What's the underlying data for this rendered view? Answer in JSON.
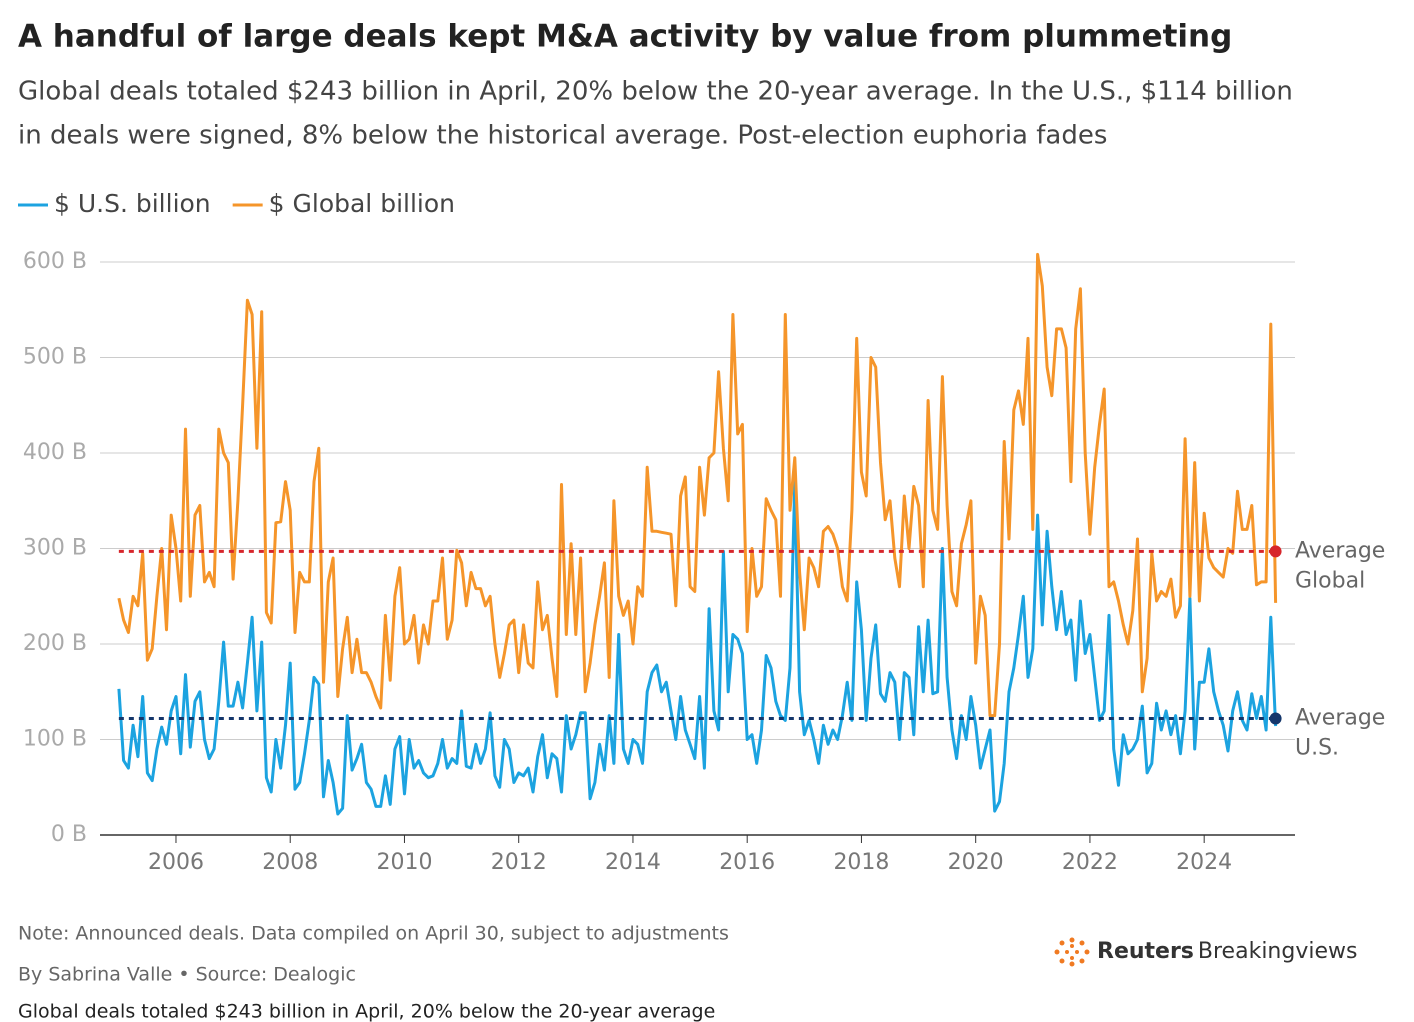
{
  "chart_data": {
    "type": "line",
    "title": "A handful of large deals kept M&A activity by value from plummeting",
    "subtitle_lines": [
      "Global deals totaled $243 billion in April, 20% below the 20-year average. In the U.S., $114 billion",
      "in deals were signed, 8% below the historical average. Post-election euphoria fades"
    ],
    "x": [
      "2005-01",
      "2005-02",
      "2005-03",
      "2005-04",
      "2005-05",
      "2005-06",
      "2005-07",
      "2005-08",
      "2005-09",
      "2005-10",
      "2005-11",
      "2005-12",
      "2006-01",
      "2006-02",
      "2006-03",
      "2006-04",
      "2006-05",
      "2006-06",
      "2006-07",
      "2006-08",
      "2006-09",
      "2006-10",
      "2006-11",
      "2006-12",
      "2007-01",
      "2007-02",
      "2007-03",
      "2007-04",
      "2007-05",
      "2007-06",
      "2007-07",
      "2007-08",
      "2007-09",
      "2007-10",
      "2007-11",
      "2007-12",
      "2008-01",
      "2008-02",
      "2008-03",
      "2008-04",
      "2008-05",
      "2008-06",
      "2008-07",
      "2008-08",
      "2008-09",
      "2008-10",
      "2008-11",
      "2008-12",
      "2009-01",
      "2009-02",
      "2009-03",
      "2009-04",
      "2009-05",
      "2009-06",
      "2009-07",
      "2009-08",
      "2009-09",
      "2009-10",
      "2009-11",
      "2009-12",
      "2010-01",
      "2010-02",
      "2010-03",
      "2010-04",
      "2010-05",
      "2010-06",
      "2010-07",
      "2010-08",
      "2010-09",
      "2010-10",
      "2010-11",
      "2010-12",
      "2011-01",
      "2011-02",
      "2011-03",
      "2011-04",
      "2011-05",
      "2011-06",
      "2011-07",
      "2011-08",
      "2011-09",
      "2011-10",
      "2011-11",
      "2011-12",
      "2012-01",
      "2012-02",
      "2012-03",
      "2012-04",
      "2012-05",
      "2012-06",
      "2012-07",
      "2012-08",
      "2012-09",
      "2012-10",
      "2012-11",
      "2012-12",
      "2013-01",
      "2013-02",
      "2013-03",
      "2013-04",
      "2013-05",
      "2013-06",
      "2013-07",
      "2013-08",
      "2013-09",
      "2013-10",
      "2013-11",
      "2013-12",
      "2014-01",
      "2014-02",
      "2014-03",
      "2014-04",
      "2014-05",
      "2014-06",
      "2014-07",
      "2014-08",
      "2014-09",
      "2014-10",
      "2014-11",
      "2014-12",
      "2015-01",
      "2015-02",
      "2015-03",
      "2015-04",
      "2015-05",
      "2015-06",
      "2015-07",
      "2015-08",
      "2015-09",
      "2015-10",
      "2015-11",
      "2015-12",
      "2016-01",
      "2016-02",
      "2016-03",
      "2016-04",
      "2016-05",
      "2016-06",
      "2016-07",
      "2016-08",
      "2016-09",
      "2016-10",
      "2016-11",
      "2016-12",
      "2017-01",
      "2017-02",
      "2017-03",
      "2017-04",
      "2017-05",
      "2017-06",
      "2017-07",
      "2017-08",
      "2017-09",
      "2017-10",
      "2017-11",
      "2017-12",
      "2018-01",
      "2018-02",
      "2018-03",
      "2018-04",
      "2018-05",
      "2018-06",
      "2018-07",
      "2018-08",
      "2018-09",
      "2018-10",
      "2018-11",
      "2018-12",
      "2019-01",
      "2019-02",
      "2019-03",
      "2019-04",
      "2019-05",
      "2019-06",
      "2019-07",
      "2019-08",
      "2019-09",
      "2019-10",
      "2019-11",
      "2019-12",
      "2020-01",
      "2020-02",
      "2020-03",
      "2020-04",
      "2020-05",
      "2020-06",
      "2020-07",
      "2020-08",
      "2020-09",
      "2020-10",
      "2020-11",
      "2020-12",
      "2021-01",
      "2021-02",
      "2021-03",
      "2021-04",
      "2021-05",
      "2021-06",
      "2021-07",
      "2021-08",
      "2021-09",
      "2021-10",
      "2021-11",
      "2021-12",
      "2022-01",
      "2022-02",
      "2022-03",
      "2022-04",
      "2022-05",
      "2022-06",
      "2022-07",
      "2022-08",
      "2022-09",
      "2022-10",
      "2022-11",
      "2022-12",
      "2023-01",
      "2023-02",
      "2023-03",
      "2023-04",
      "2023-05",
      "2023-06",
      "2023-07",
      "2023-08",
      "2023-09",
      "2023-10",
      "2023-11",
      "2023-12",
      "2024-01",
      "2024-02",
      "2024-03",
      "2024-04",
      "2024-05",
      "2024-06",
      "2024-07",
      "2024-08",
      "2024-09",
      "2024-10",
      "2024-11",
      "2024-12",
      "2025-01",
      "2025-02",
      "2025-03",
      "2025-04"
    ],
    "series": [
      {
        "name": "$ U.S. billion",
        "color": "#1ca3e0",
        "values": [
          153,
          78,
          70,
          115,
          82,
          145,
          65,
          57,
          90,
          113,
          95,
          130,
          145,
          85,
          168,
          92,
          140,
          150,
          100,
          80,
          90,
          140,
          202,
          135,
          135,
          160,
          133,
          180,
          228,
          130,
          202,
          60,
          45,
          100,
          70,
          115,
          180,
          48,
          55,
          85,
          120,
          165,
          158,
          40,
          78,
          55,
          22,
          28,
          125,
          68,
          80,
          95,
          55,
          48,
          30,
          30,
          62,
          32,
          90,
          103,
          43,
          100,
          70,
          78,
          65,
          60,
          62,
          75,
          100,
          70,
          80,
          75,
          130,
          72,
          70,
          95,
          75,
          90,
          128,
          62,
          50,
          100,
          90,
          55,
          65,
          62,
          70,
          45,
          82,
          105,
          60,
          85,
          80,
          45,
          125,
          90,
          105,
          128,
          128,
          38,
          55,
          95,
          68,
          125,
          75,
          210,
          90,
          75,
          100,
          95,
          75,
          150,
          170,
          178,
          150,
          160,
          130,
          100,
          145,
          110,
          95,
          80,
          145,
          70,
          237,
          130,
          110,
          297,
          150,
          210,
          205,
          190,
          100,
          105,
          75,
          110,
          188,
          175,
          140,
          125,
          120,
          175,
          370,
          150,
          105,
          120,
          100,
          75,
          115,
          95,
          110,
          100,
          125,
          160,
          120,
          265,
          215,
          120,
          185,
          220,
          148,
          140,
          170,
          160,
          100,
          170,
          165,
          105,
          218,
          150,
          225,
          148,
          150,
          300,
          165,
          110,
          80,
          125,
          100,
          145,
          115,
          70,
          90,
          110,
          25,
          35,
          75,
          150,
          175,
          210,
          250,
          165,
          195,
          335,
          220,
          318,
          260,
          215,
          255,
          210,
          225,
          162,
          245,
          190,
          210,
          165,
          120,
          130,
          230,
          90,
          52,
          105,
          85,
          90,
          100,
          135,
          65,
          75,
          138,
          110,
          130,
          105,
          125,
          85,
          130,
          248,
          90,
          160,
          160,
          195,
          150,
          130,
          115,
          88,
          130,
          150,
          120,
          110,
          148,
          122,
          145,
          110,
          228,
          114
        ]
      },
      {
        "name": "$ Global billion",
        "color": "#f5952a",
        "values": [
          248,
          225,
          212,
          250,
          240,
          295,
          183,
          195,
          250,
          300,
          215,
          335,
          300,
          245,
          425,
          250,
          335,
          345,
          265,
          275,
          260,
          425,
          400,
          390,
          268,
          350,
          450,
          560,
          545,
          405,
          548,
          233,
          222,
          327,
          328,
          370,
          340,
          212,
          275,
          265,
          265,
          370,
          405,
          160,
          265,
          290,
          145,
          195,
          228,
          170,
          205,
          170,
          170,
          160,
          145,
          133,
          230,
          162,
          250,
          280,
          200,
          205,
          230,
          180,
          220,
          200,
          245,
          245,
          290,
          205,
          225,
          298,
          285,
          240,
          275,
          258,
          258,
          240,
          250,
          200,
          165,
          190,
          220,
          225,
          170,
          220,
          180,
          175,
          265,
          215,
          230,
          185,
          145,
          367,
          210,
          305,
          210,
          290,
          150,
          180,
          220,
          250,
          285,
          165,
          350,
          250,
          230,
          245,
          200,
          260,
          250,
          385,
          318,
          318,
          317,
          316,
          315,
          240,
          355,
          375,
          260,
          255,
          385,
          335,
          395,
          400,
          485,
          405,
          350,
          545,
          420,
          430,
          213,
          300,
          250,
          260,
          352,
          340,
          330,
          250,
          545,
          340,
          395,
          275,
          215,
          290,
          280,
          260,
          318,
          323,
          315,
          300,
          260,
          245,
          340,
          520,
          380,
          355,
          500,
          490,
          390,
          330,
          350,
          290,
          260,
          355,
          300,
          365,
          345,
          260,
          455,
          340,
          320,
          480,
          345,
          255,
          240,
          305,
          325,
          350,
          180,
          250,
          230,
          125,
          125,
          200,
          412,
          310,
          445,
          465,
          430,
          520,
          320,
          608,
          575,
          490,
          460,
          530,
          530,
          510,
          370,
          530,
          572,
          400,
          315,
          385,
          430,
          467,
          260,
          265,
          245,
          220,
          200,
          235,
          310,
          150,
          185,
          295,
          245,
          255,
          250,
          268,
          228,
          240,
          415,
          250,
          390,
          245,
          337,
          290,
          280,
          275,
          270,
          300,
          295,
          360,
          320,
          320,
          345,
          262,
          265,
          265,
          535,
          243
        ]
      }
    ],
    "reference_lines": [
      {
        "label_lines": [
          "Average",
          "Global"
        ],
        "value": 297,
        "color": "#d7262b"
      },
      {
        "label_lines": [
          "Average",
          "U.S."
        ],
        "value": 122,
        "color": "#14366b"
      }
    ],
    "xlim": [
      2004.67,
      2025.59
    ],
    "xticks": [
      2006,
      2008,
      2010,
      2012,
      2014,
      2016,
      2018,
      2020,
      2022,
      2024
    ],
    "ylim": [
      0,
      600
    ],
    "yticks": [
      {
        "value": 0,
        "label": "0 B"
      },
      {
        "value": 100,
        "label": "100 B"
      },
      {
        "value": 200,
        "label": "200 B"
      },
      {
        "value": 300,
        "label": "300 B"
      },
      {
        "value": 400,
        "label": "400 B"
      },
      {
        "value": 500,
        "label": "500 B"
      },
      {
        "value": 600,
        "label": "600 B"
      }
    ],
    "grid": true,
    "legend": "top-left",
    "note": "Note: Announced deals. Data compiled on April 30, subject to adjustments",
    "byline": "By Sabrina Valle • Source: Dealogic",
    "logo": [
      "Reuters",
      "Breakingviews"
    ],
    "caption": "Global deals totaled $243 billion in April, 20% below the 20-year average"
  }
}
